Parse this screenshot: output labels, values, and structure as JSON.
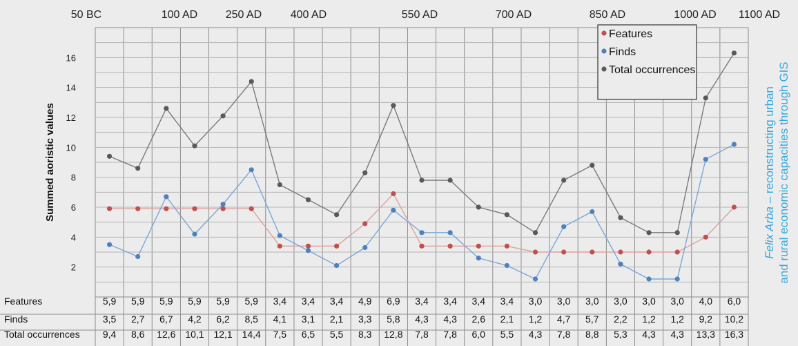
{
  "chart_data": {
    "type": "line",
    "title": "",
    "ylabel": "Summed aoristic values",
    "xlabel": "",
    "ylim": [
      0,
      18
    ],
    "yticks": [
      2,
      4,
      6,
      8,
      10,
      12,
      14,
      16
    ],
    "grid": true,
    "legend_position": "top-right",
    "top_axis_labels": [
      "50 BC",
      "100 AD",
      "250 AD",
      "400 AD",
      "550 AD",
      "700 AD",
      "850 AD",
      "1000 AD",
      "1100 AD"
    ],
    "series": [
      {
        "name": "Features",
        "color": "#c0504d",
        "line_color": "#dca09e",
        "values": [
          5.9,
          5.9,
          5.9,
          5.9,
          5.9,
          5.9,
          3.4,
          3.4,
          3.4,
          4.9,
          6.9,
          3.4,
          3.4,
          3.4,
          3.4,
          3.0,
          3.0,
          3.0,
          3.0,
          3.0,
          3.0,
          4.0,
          6.0
        ],
        "labels": [
          "5,9",
          "5,9",
          "5,9",
          "5,9",
          "5,9",
          "5,9",
          "3,4",
          "3,4",
          "3,4",
          "4,9",
          "6,9",
          "3,4",
          "3,4",
          "3,4",
          "3,4",
          "3,0",
          "3,0",
          "3,0",
          "3,0",
          "3,0",
          "3,0",
          "4,0",
          "6,0"
        ]
      },
      {
        "name": "Finds",
        "color": "#4f81bd",
        "line_color": "#7aa6d8",
        "values": [
          3.5,
          2.7,
          6.7,
          4.2,
          6.2,
          8.5,
          4.1,
          3.1,
          2.1,
          3.3,
          5.8,
          4.3,
          4.3,
          2.6,
          2.1,
          1.2,
          4.7,
          5.7,
          2.2,
          1.2,
          1.2,
          9.2,
          10.2
        ],
        "labels": [
          "3,5",
          "2,7",
          "6,7",
          "4,2",
          "6,2",
          "8,5",
          "4,1",
          "3,1",
          "2,1",
          "3,3",
          "5,8",
          "4,3",
          "4,3",
          "2,6",
          "2,1",
          "1,2",
          "4,7",
          "5,7",
          "2,2",
          "1,2",
          "1,2",
          "9,2",
          "10,2"
        ]
      },
      {
        "name": "Total occurrences",
        "color": "#595959",
        "line_color": "#7a7a7a",
        "values": [
          9.4,
          8.6,
          12.6,
          10.1,
          12.1,
          14.4,
          7.5,
          6.5,
          5.5,
          8.3,
          12.8,
          7.8,
          7.8,
          6.0,
          5.5,
          4.3,
          7.8,
          8.8,
          5.3,
          4.3,
          4.3,
          13.3,
          16.3
        ],
        "labels": [
          "9,4",
          "8,6",
          "12,6",
          "10,1",
          "12,1",
          "14,4",
          "7,5",
          "6,5",
          "5,5",
          "8,3",
          "12,8",
          "7,8",
          "7,8",
          "6,0",
          "5,5",
          "4,3",
          "7,8",
          "8,8",
          "5,3",
          "4,3",
          "4,3",
          "13,3",
          "16,3"
        ]
      }
    ]
  },
  "side_caption": {
    "line1_italic": "Felix Arba",
    "line1_rest": " – reconstructing urban",
    "line2": "and rural economic capacities through GIS"
  }
}
